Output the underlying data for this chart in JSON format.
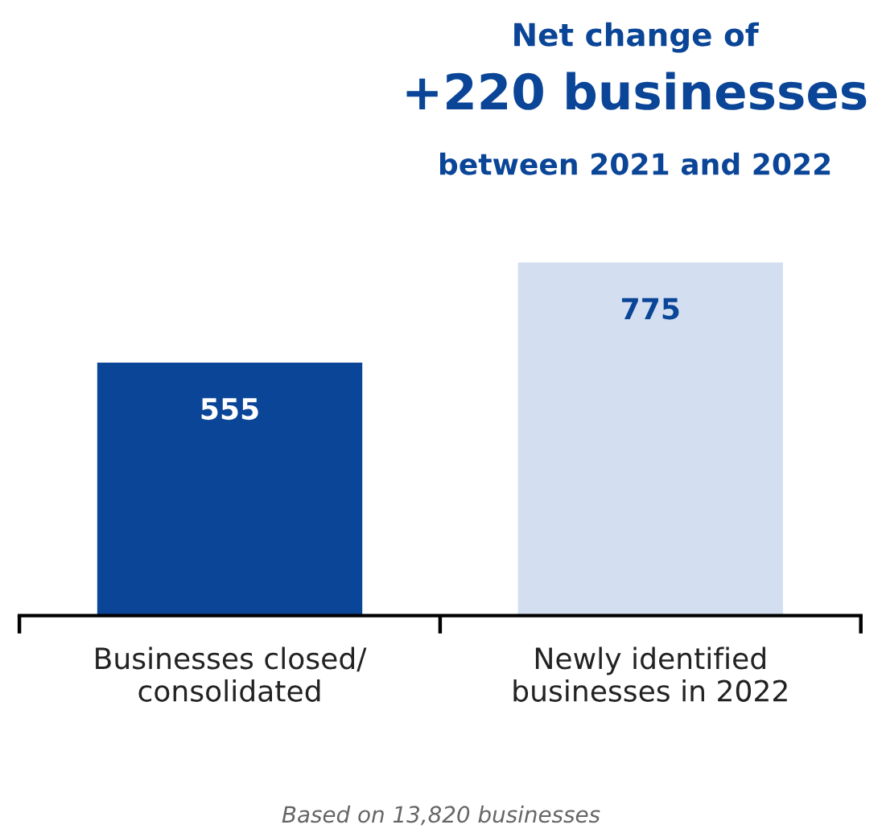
{
  "chart_data": {
    "type": "bar",
    "title": "Net change of",
    "subtitle": "+220 businesses",
    "categories": [
      "Businesses closed/\nconsolidated",
      "Newly identified\nbusinesses in 2022"
    ],
    "values": [
      555,
      775
    ],
    "colors": [
      "#0a4597",
      "#d3dff0"
    ],
    "data_labels": true,
    "annotations": [
      "between 2021 and 2022",
      "Based on 13,820 businesses"
    ]
  }
}
